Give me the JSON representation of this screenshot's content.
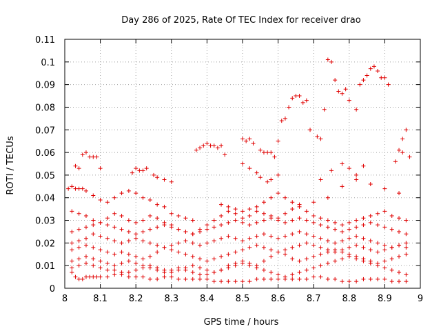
{
  "chart_data": {
    "type": "scatter",
    "title": "Day 286 of 2025, Rate Of TEC Index for receiver drao",
    "xlabel": "GPS time / hours",
    "ylabel": "ROTI / TECUs",
    "xlim": [
      8,
      9
    ],
    "ylim": [
      0,
      0.11
    ],
    "x_ticks": [
      "8",
      "8.1",
      "8.2",
      "8.3",
      "8.4",
      "8.5",
      "8.6",
      "8.7",
      "8.8",
      "8.9",
      "9"
    ],
    "y_ticks": [
      "0",
      "0.01",
      "0.02",
      "0.03",
      "0.04",
      "0.05",
      "0.06",
      "0.07",
      "0.08",
      "0.09",
      "0.1",
      "0.11"
    ],
    "grid": true,
    "marker": "+",
    "color": "#e00000",
    "series": [
      {
        "x": [
          8.02,
          8.03,
          8.04,
          8.05,
          8.06,
          8.07,
          8.08,
          8.09,
          8.1,
          8.12,
          8.14,
          8.16,
          8.18,
          8.2,
          8.22,
          8.24,
          8.26,
          8.28,
          8.3,
          8.32,
          8.34,
          8.36,
          8.38,
          8.4,
          8.42,
          8.44,
          8.46,
          8.48,
          8.5,
          8.52,
          8.54,
          8.56,
          8.58,
          8.6,
          8.62,
          8.64,
          8.66,
          8.68,
          8.7,
          8.72,
          8.74,
          8.76,
          8.78,
          8.8,
          8.82,
          8.84,
          8.86,
          8.88,
          8.9,
          8.92,
          8.94,
          8.96
        ],
        "y": [
          0.007,
          0.005,
          0.004,
          0.004,
          0.005,
          0.005,
          0.005,
          0.005,
          0.005,
          0.005,
          0.006,
          0.006,
          0.005,
          0.005,
          0.005,
          0.004,
          0.004,
          0.005,
          0.005,
          0.004,
          0.004,
          0.004,
          0.004,
          0.004,
          0.003,
          0.003,
          0.003,
          0.003,
          0.003,
          0.003,
          0.004,
          0.004,
          0.004,
          0.004,
          0.004,
          0.004,
          0.004,
          0.004,
          0.005,
          0.005,
          0.004,
          0.004,
          0.003,
          0.003,
          0.003,
          0.004,
          0.004,
          0.004,
          0.004,
          0.003,
          0.003,
          0.003
        ]
      },
      {
        "x": [
          8.02,
          8.04,
          8.06,
          8.08,
          8.1,
          8.12,
          8.14,
          8.16,
          8.18,
          8.2,
          8.22,
          8.24,
          8.26,
          8.28,
          8.3,
          8.32,
          8.34,
          8.36,
          8.38,
          8.4,
          8.42,
          8.44,
          8.46,
          8.48,
          8.5,
          8.52,
          8.54,
          8.56,
          8.58,
          8.6,
          8.62,
          8.64,
          8.66,
          8.68,
          8.7,
          8.72,
          8.74,
          8.76,
          8.78,
          8.8,
          8.82,
          8.84,
          8.86,
          8.88,
          8.9,
          8.92,
          8.94,
          8.96
        ],
        "y": [
          0.009,
          0.01,
          0.011,
          0.01,
          0.009,
          0.008,
          0.008,
          0.007,
          0.007,
          0.008,
          0.009,
          0.01,
          0.009,
          0.008,
          0.008,
          0.009,
          0.008,
          0.007,
          0.006,
          0.006,
          0.007,
          0.008,
          0.009,
          0.01,
          0.011,
          0.01,
          0.009,
          0.008,
          0.007,
          0.006,
          0.005,
          0.006,
          0.007,
          0.008,
          0.009,
          0.01,
          0.011,
          0.012,
          0.013,
          0.014,
          0.013,
          0.012,
          0.011,
          0.01,
          0.009,
          0.008,
          0.007,
          0.006
        ]
      },
      {
        "x": [
          8.02,
          8.04,
          8.06,
          8.08,
          8.1,
          8.12,
          8.14,
          8.16,
          8.18,
          8.2,
          8.22,
          8.24,
          8.26,
          8.28,
          8.3,
          8.32,
          8.34,
          8.36,
          8.38,
          8.4,
          8.42,
          8.44,
          8.46,
          8.48,
          8.5,
          8.52,
          8.54,
          8.56,
          8.58,
          8.6,
          8.62,
          8.64,
          8.66,
          8.68,
          8.7,
          8.72,
          8.74,
          8.76,
          8.78,
          8.8,
          8.82,
          8.84,
          8.86,
          8.88,
          8.9,
          8.92,
          8.94,
          8.96
        ],
        "y": [
          0.012,
          0.013,
          0.014,
          0.013,
          0.012,
          0.011,
          0.01,
          0.011,
          0.012,
          0.011,
          0.01,
          0.009,
          0.008,
          0.007,
          0.007,
          0.008,
          0.009,
          0.01,
          0.009,
          0.008,
          0.007,
          0.008,
          0.01,
          0.011,
          0.012,
          0.011,
          0.01,
          0.012,
          0.014,
          0.016,
          0.015,
          0.013,
          0.012,
          0.013,
          0.014,
          0.015,
          0.016,
          0.017,
          0.016,
          0.015,
          0.014,
          0.013,
          0.012,
          0.011,
          0.012,
          0.013,
          0.014,
          0.015
        ]
      },
      {
        "x": [
          8.02,
          8.04,
          8.06,
          8.08,
          8.1,
          8.12,
          8.14,
          8.16,
          8.18,
          8.2,
          8.22,
          8.24,
          8.26,
          8.28,
          8.3,
          8.32,
          8.34,
          8.36,
          8.38,
          8.4,
          8.42,
          8.44,
          8.46,
          8.48,
          8.5,
          8.52,
          8.54,
          8.56,
          8.58,
          8.6,
          8.62,
          8.64,
          8.66,
          8.68,
          8.7,
          8.72,
          8.74,
          8.76,
          8.78,
          8.8,
          8.82,
          8.84,
          8.86,
          8.88,
          8.9,
          8.92,
          8.94,
          8.96
        ],
        "y": [
          0.017,
          0.018,
          0.019,
          0.018,
          0.017,
          0.016,
          0.015,
          0.016,
          0.015,
          0.014,
          0.013,
          0.014,
          0.016,
          0.018,
          0.017,
          0.016,
          0.015,
          0.014,
          0.013,
          0.012,
          0.013,
          0.014,
          0.015,
          0.016,
          0.017,
          0.018,
          0.019,
          0.018,
          0.017,
          0.016,
          0.017,
          0.018,
          0.019,
          0.02,
          0.019,
          0.018,
          0.017,
          0.016,
          0.017,
          0.018,
          0.019,
          0.018,
          0.017,
          0.016,
          0.017,
          0.018,
          0.019,
          0.018
        ]
      },
      {
        "x": [
          8.02,
          8.04,
          8.06,
          8.08,
          8.1,
          8.12,
          8.14,
          8.16,
          8.18,
          8.2,
          8.22,
          8.24,
          8.26,
          8.28,
          8.3,
          8.32,
          8.34,
          8.36,
          8.38,
          8.4,
          8.42,
          8.44,
          8.46,
          8.48,
          8.5,
          8.52,
          8.54,
          8.56,
          8.58,
          8.6,
          8.62,
          8.64,
          8.66,
          8.68,
          8.7,
          8.72,
          8.74,
          8.76,
          8.78,
          8.8,
          8.82,
          8.84,
          8.86,
          8.88,
          8.9,
          8.92,
          8.94,
          8.96
        ],
        "y": [
          0.02,
          0.021,
          0.022,
          0.024,
          0.023,
          0.022,
          0.021,
          0.02,
          0.021,
          0.022,
          0.021,
          0.02,
          0.019,
          0.018,
          0.019,
          0.02,
          0.021,
          0.02,
          0.019,
          0.02,
          0.021,
          0.022,
          0.023,
          0.022,
          0.021,
          0.022,
          0.023,
          0.024,
          0.023,
          0.022,
          0.023,
          0.024,
          0.025,
          0.024,
          0.023,
          0.022,
          0.021,
          0.02,
          0.021,
          0.022,
          0.023,
          0.022,
          0.021,
          0.02,
          0.019,
          0.018,
          0.019,
          0.02
        ]
      },
      {
        "x": [
          8.02,
          8.04,
          8.06,
          8.08,
          8.1,
          8.12,
          8.14,
          8.16,
          8.18,
          8.2,
          8.22,
          8.24,
          8.26,
          8.28,
          8.3,
          8.32,
          8.34,
          8.36,
          8.38,
          8.4,
          8.42,
          8.44,
          8.46,
          8.48,
          8.5,
          8.52,
          8.54,
          8.56,
          8.58,
          8.6,
          8.62,
          8.64,
          8.66,
          8.68,
          8.7,
          8.72,
          8.74,
          8.76,
          8.78,
          8.8,
          8.82,
          8.84,
          8.86,
          8.88,
          8.9,
          8.92,
          8.94,
          8.96
        ],
        "y": [
          0.025,
          0.026,
          0.027,
          0.028,
          0.029,
          0.028,
          0.027,
          0.026,
          0.025,
          0.024,
          0.025,
          0.026,
          0.027,
          0.028,
          0.027,
          0.026,
          0.025,
          0.024,
          0.025,
          0.026,
          0.027,
          0.028,
          0.029,
          0.03,
          0.029,
          0.028,
          0.029,
          0.03,
          0.031,
          0.03,
          0.029,
          0.03,
          0.031,
          0.03,
          0.029,
          0.028,
          0.027,
          0.026,
          0.025,
          0.026,
          0.027,
          0.028,
          0.029,
          0.028,
          0.027,
          0.026,
          0.025,
          0.024
        ]
      },
      {
        "x": [
          8.02,
          8.04,
          8.06,
          8.08,
          8.1,
          8.12,
          8.14,
          8.16,
          8.18,
          8.2,
          8.22,
          8.24,
          8.26,
          8.28,
          8.3,
          8.32,
          8.34,
          8.36,
          8.38,
          8.4,
          8.42,
          8.44,
          8.46,
          8.48,
          8.5,
          8.52,
          8.54,
          8.56,
          8.58,
          8.6,
          8.62,
          8.64,
          8.66,
          8.68,
          8.7,
          8.72,
          8.74,
          8.76,
          8.78,
          8.8,
          8.82,
          8.84,
          8.86,
          8.88,
          8.9,
          8.92,
          8.94,
          8.96
        ],
        "y": [
          0.034,
          0.033,
          0.032,
          0.03,
          0.029,
          0.031,
          0.033,
          0.032,
          0.03,
          0.029,
          0.03,
          0.032,
          0.031,
          0.029,
          0.028,
          0.026,
          0.025,
          0.024,
          0.026,
          0.028,
          0.03,
          0.032,
          0.034,
          0.033,
          0.031,
          0.032,
          0.034,
          0.033,
          0.032,
          0.031,
          0.033,
          0.035,
          0.036,
          0.034,
          0.032,
          0.031,
          0.03,
          0.029,
          0.028,
          0.029,
          0.03,
          0.031,
          0.032,
          0.033,
          0.034,
          0.032,
          0.031,
          0.03
        ]
      },
      {
        "x": [
          8.01,
          8.02,
          8.03,
          8.04,
          8.05,
          8.06,
          8.08,
          8.1,
          8.12,
          8.14,
          8.16,
          8.18,
          8.2,
          8.22,
          8.24,
          8.26,
          8.28,
          8.3,
          8.32,
          8.34,
          8.36,
          8.44,
          8.46,
          8.48,
          8.5,
          8.52,
          8.54,
          8.56,
          8.58,
          8.6,
          8.62,
          8.64,
          8.66,
          8.7,
          8.74,
          8.78,
          8.82,
          8.86,
          8.9,
          8.94
        ],
        "y": [
          0.044,
          0.045,
          0.044,
          0.044,
          0.044,
          0.043,
          0.041,
          0.039,
          0.038,
          0.04,
          0.042,
          0.043,
          0.042,
          0.04,
          0.039,
          0.037,
          0.036,
          0.033,
          0.032,
          0.031,
          0.03,
          0.037,
          0.036,
          0.035,
          0.034,
          0.035,
          0.036,
          0.038,
          0.04,
          0.042,
          0.04,
          0.038,
          0.037,
          0.038,
          0.04,
          0.045,
          0.048,
          0.046,
          0.044,
          0.042
        ]
      },
      {
        "x": [
          8.03,
          8.04,
          8.05,
          8.06,
          8.07,
          8.08,
          8.09,
          8.1,
          8.19,
          8.2,
          8.21,
          8.22,
          8.23,
          8.25,
          8.26,
          8.28,
          8.3,
          8.5,
          8.52,
          8.54,
          8.55,
          8.57,
          8.58,
          8.6,
          8.72,
          8.75,
          8.78,
          8.8,
          8.82,
          8.84,
          8.93,
          8.94,
          8.95
        ],
        "y": [
          0.054,
          0.053,
          0.059,
          0.06,
          0.058,
          0.058,
          0.058,
          0.053,
          0.051,
          0.053,
          0.052,
          0.052,
          0.053,
          0.05,
          0.049,
          0.048,
          0.047,
          0.055,
          0.053,
          0.051,
          0.049,
          0.047,
          0.048,
          0.05,
          0.048,
          0.052,
          0.055,
          0.053,
          0.05,
          0.054,
          0.056,
          0.061,
          0.06
        ]
      },
      {
        "x": [
          8.37,
          8.38,
          8.39,
          8.4,
          8.41,
          8.42,
          8.43,
          8.44,
          8.45,
          8.5,
          8.51,
          8.52,
          8.53,
          8.55,
          8.56,
          8.57,
          8.58,
          8.59,
          8.6,
          8.61,
          8.62,
          8.63,
          8.64,
          8.65,
          8.66,
          8.67,
          8.68,
          8.69,
          8.71,
          8.72,
          8.73,
          8.74,
          8.75,
          8.76,
          8.77,
          8.78,
          8.79,
          8.8,
          8.82,
          8.83,
          8.84,
          8.85,
          8.86,
          8.87,
          8.88,
          8.89,
          8.9,
          8.91,
          8.95,
          8.96,
          8.97
        ],
        "y": [
          0.061,
          0.062,
          0.063,
          0.064,
          0.063,
          0.063,
          0.062,
          0.063,
          0.059,
          0.066,
          0.065,
          0.066,
          0.064,
          0.061,
          0.06,
          0.06,
          0.06,
          0.058,
          0.065,
          0.074,
          0.075,
          0.08,
          0.084,
          0.085,
          0.085,
          0.082,
          0.083,
          0.07,
          0.067,
          0.066,
          0.079,
          0.101,
          0.1,
          0.092,
          0.087,
          0.086,
          0.088,
          0.083,
          0.079,
          0.09,
          0.092,
          0.094,
          0.097,
          0.098,
          0.096,
          0.093,
          0.093,
          0.09,
          0.066,
          0.07,
          0.058
        ]
      }
    ]
  }
}
